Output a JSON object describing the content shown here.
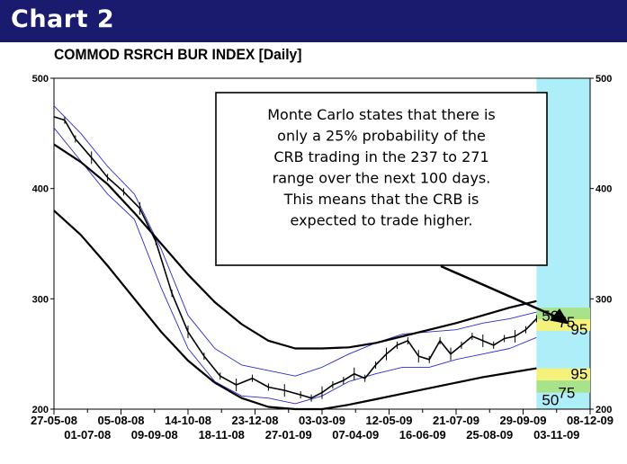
{
  "header": {
    "title": "Chart 2"
  },
  "chart_data": {
    "type": "line",
    "title": "COMMOD RSRCH BUR INDEX  [Daily]",
    "ylim": [
      200,
      500
    ],
    "yticks": [
      500,
      400,
      300,
      200
    ],
    "xticks_upper": [
      "27-05-08",
      "05-08-08",
      "14-10-08",
      "23-12-08",
      "03-03-09",
      "12-05-09",
      "21-07-09",
      "29-09-09",
      "08-12-09"
    ],
    "xticks_lower": [
      "01-07-08",
      "09-09-08",
      "18-11-08",
      "27-01-09",
      "07-04-09",
      "16-06-09",
      "25-08-09",
      "03-11-09"
    ],
    "xticks_upper_frac": [
      0.0,
      0.125,
      0.25,
      0.375,
      0.5,
      0.625,
      0.75,
      0.875,
      1.0
    ],
    "xticks_lower_frac": [
      0.0625,
      0.1875,
      0.3125,
      0.4375,
      0.5625,
      0.6875,
      0.8125,
      0.9375
    ],
    "data_end_frac": 0.9,
    "series": [
      {
        "key": "price",
        "x": [
          0.0,
          0.02,
          0.04,
          0.07,
          0.1,
          0.13,
          0.16,
          0.19,
          0.22,
          0.25,
          0.28,
          0.31,
          0.34,
          0.37,
          0.4,
          0.43,
          0.46,
          0.48,
          0.5,
          0.52,
          0.54,
          0.56,
          0.58,
          0.6,
          0.62,
          0.64,
          0.66,
          0.68,
          0.7,
          0.72,
          0.74,
          0.76,
          0.78,
          0.8,
          0.82,
          0.84,
          0.86,
          0.88,
          0.9
        ],
        "values": [
          465,
          462,
          445,
          428,
          410,
          397,
          382,
          352,
          305,
          270,
          248,
          230,
          222,
          228,
          220,
          217,
          213,
          210,
          215,
          222,
          226,
          232,
          228,
          240,
          250,
          258,
          262,
          248,
          245,
          262,
          250,
          258,
          266,
          262,
          258,
          264,
          266,
          272,
          282
        ]
      },
      {
        "key": "upper_channel",
        "x": [
          0.0,
          0.05,
          0.1,
          0.15,
          0.2,
          0.25,
          0.3,
          0.35,
          0.4,
          0.45,
          0.5,
          0.55,
          0.6,
          0.65,
          0.7,
          0.75,
          0.8,
          0.85,
          0.9
        ],
        "values": [
          440,
          424,
          404,
          378,
          350,
          322,
          297,
          277,
          262,
          255,
          255,
          256,
          260,
          266,
          272,
          278,
          285,
          292,
          298
        ]
      },
      {
        "key": "lower_channel",
        "x": [
          0.0,
          0.05,
          0.1,
          0.15,
          0.2,
          0.25,
          0.3,
          0.35,
          0.4,
          0.45,
          0.5,
          0.55,
          0.6,
          0.65,
          0.7,
          0.75,
          0.8,
          0.85,
          0.9
        ],
        "values": [
          380,
          358,
          330,
          300,
          270,
          244,
          224,
          210,
          202,
          198,
          200,
          204,
          209,
          214,
          219,
          224,
          229,
          233,
          237
        ]
      },
      {
        "key": "blue_upper",
        "x": [
          0.0,
          0.05,
          0.1,
          0.15,
          0.2,
          0.25,
          0.3,
          0.35,
          0.4,
          0.45,
          0.5,
          0.55,
          0.6,
          0.65,
          0.7,
          0.75,
          0.8,
          0.85,
          0.9
        ],
        "values": [
          475,
          450,
          420,
          395,
          345,
          285,
          255,
          240,
          235,
          230,
          238,
          250,
          260,
          268,
          270,
          272,
          278,
          282,
          288
        ]
      },
      {
        "key": "blue_lower",
        "x": [
          0.0,
          0.05,
          0.1,
          0.15,
          0.2,
          0.25,
          0.3,
          0.35,
          0.4,
          0.45,
          0.5,
          0.55,
          0.6,
          0.65,
          0.7,
          0.75,
          0.8,
          0.85,
          0.9
        ],
        "values": [
          455,
          425,
          395,
          372,
          310,
          255,
          225,
          212,
          210,
          205,
          212,
          225,
          232,
          238,
          238,
          245,
          250,
          255,
          265
        ]
      }
    ],
    "forecast": {
      "upper_labels": [
        "50",
        "75",
        "95"
      ],
      "lower_labels": [
        "50",
        "75",
        "95"
      ],
      "upper_band": [
        271,
        292
      ],
      "lower_band": [
        215,
        237
      ],
      "panel_color": "#aeeef8",
      "band_color_yellow": "#f4f27a",
      "band_color_green": "#a8e28a"
    },
    "annotation": "Monte Carlo states that there is only a 25% probability of the CRB trading in the 237 to 271 range over the next 100 days. This means that the CRB is expected to trade higher.",
    "annotation_lines": [
      "Monte Carlo states that there is",
      "only a 25% probability of the",
      "CRB trading in the 237 to 271",
      "range over the next 100 days.",
      "This means that the CRB is",
      "expected to trade higher."
    ]
  }
}
